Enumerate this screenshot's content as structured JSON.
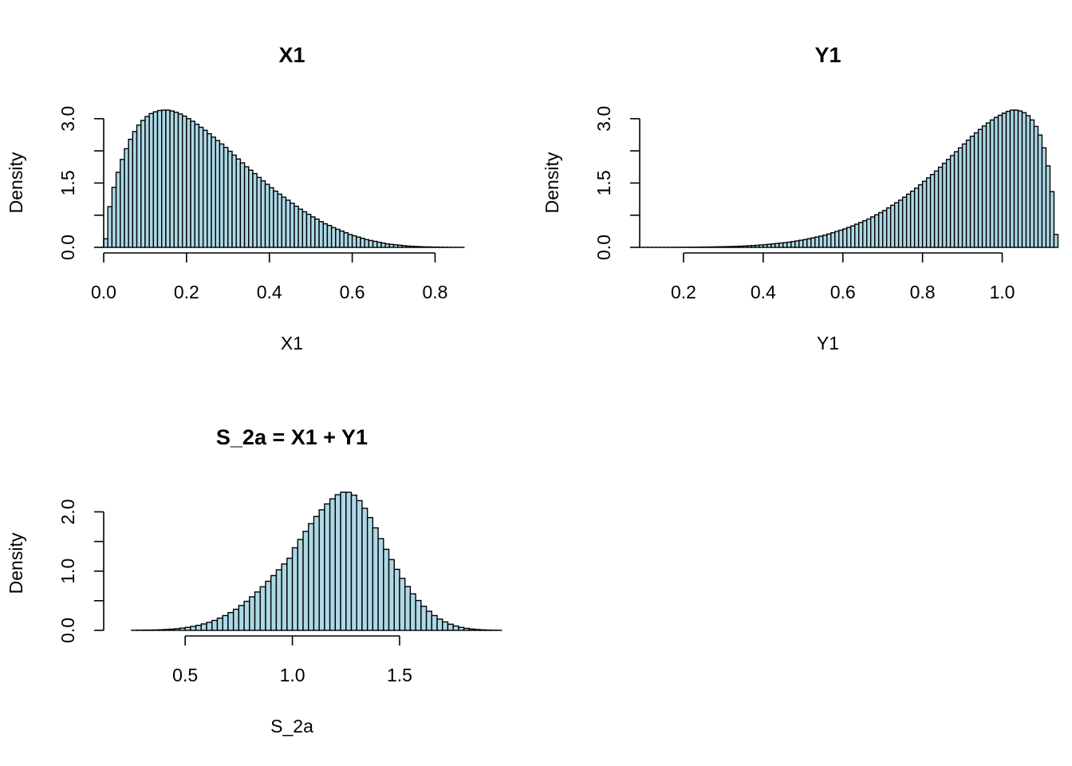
{
  "chart_data": [
    {
      "type": "bar",
      "title": "X1",
      "xlabel": "X1",
      "ylabel": "Density",
      "xlim": [
        0.0,
        0.88
      ],
      "ylim": [
        0.0,
        3.2
      ],
      "xticks": [
        "0.0",
        "0.2",
        "0.4",
        "0.6",
        "0.8"
      ],
      "yticks": [
        "0.0",
        "1.5",
        "3.0"
      ],
      "bin_start": 0.0,
      "bin_width": 0.01,
      "values": [
        0.2,
        0.95,
        1.4,
        1.75,
        2.05,
        2.3,
        2.52,
        2.7,
        2.85,
        2.96,
        3.05,
        3.12,
        3.16,
        3.19,
        3.2,
        3.2,
        3.18,
        3.15,
        3.11,
        3.06,
        3.0,
        2.94,
        2.87,
        2.8,
        2.73,
        2.65,
        2.57,
        2.49,
        2.41,
        2.33,
        2.24,
        2.15,
        2.06,
        1.97,
        1.88,
        1.8,
        1.72,
        1.63,
        1.55,
        1.47,
        1.39,
        1.31,
        1.24,
        1.17,
        1.1,
        1.03,
        0.96,
        0.89,
        0.83,
        0.77,
        0.71,
        0.66,
        0.6,
        0.55,
        0.51,
        0.46,
        0.42,
        0.38,
        0.34,
        0.3,
        0.27,
        0.24,
        0.21,
        0.18,
        0.16,
        0.14,
        0.12,
        0.1,
        0.08,
        0.07,
        0.06,
        0.05,
        0.04,
        0.03,
        0.025,
        0.02,
        0.015,
        0.012,
        0.01,
        0.008,
        0.006,
        0.004,
        0.003,
        0.002,
        0.001,
        0.001,
        0.001
      ]
    },
    {
      "type": "bar",
      "title": "Y1",
      "xlabel": "Y1",
      "ylabel": "Density",
      "xlim": [
        0.09,
        1.005
      ],
      "ylim": [
        0.0,
        3.2
      ],
      "xticks": [
        "0.2",
        "0.4",
        "0.6",
        "0.8",
        "1.0"
      ],
      "yticks": [
        "0.0",
        "1.5",
        "3.0"
      ],
      "bin_start": 0.09,
      "bin_width": 0.01,
      "values": [
        0.001,
        0.001,
        0.001,
        0.001,
        0.001,
        0.001,
        0.001,
        0.001,
        0.002,
        0.002,
        0.003,
        0.003,
        0.004,
        0.004,
        0.005,
        0.006,
        0.007,
        0.008,
        0.01,
        0.012,
        0.014,
        0.016,
        0.018,
        0.021,
        0.024,
        0.028,
        0.032,
        0.037,
        0.042,
        0.048,
        0.055,
        0.062,
        0.07,
        0.08,
        0.09,
        0.1,
        0.11,
        0.12,
        0.135,
        0.15,
        0.165,
        0.18,
        0.2,
        0.22,
        0.24,
        0.26,
        0.285,
        0.31,
        0.34,
        0.37,
        0.4,
        0.43,
        0.465,
        0.5,
        0.54,
        0.58,
        0.62,
        0.66,
        0.71,
        0.76,
        0.81,
        0.86,
        0.92,
        0.98,
        1.04,
        1.1,
        1.17,
        1.24,
        1.31,
        1.38,
        1.46,
        1.54,
        1.62,
        1.7,
        1.78,
        1.87,
        1.96,
        2.05,
        2.14,
        2.23,
        2.32,
        2.41,
        2.5,
        2.59,
        2.67,
        2.75,
        2.83,
        2.9,
        2.97,
        3.03,
        3.08,
        3.13,
        3.17,
        3.2,
        3.2,
        3.18,
        3.14,
        3.07,
        2.97,
        2.82,
        2.62,
        2.32,
        1.9,
        1.3,
        0.3
      ]
    },
    {
      "type": "bar",
      "title": "S_2a = X1 + Y1",
      "xlabel": "S_2a",
      "ylabel": "Density",
      "xlim": [
        0.12,
        1.82
      ],
      "ylim": [
        0.0,
        2.33
      ],
      "xticks": [
        "0.5",
        "1.0",
        "1.5"
      ],
      "yticks": [
        "0.0",
        "1.0",
        "2.0"
      ],
      "bin_start": 0.25,
      "bin_width": 0.025,
      "values": [
        0.002,
        0.003,
        0.004,
        0.005,
        0.007,
        0.01,
        0.015,
        0.02,
        0.028,
        0.038,
        0.05,
        0.066,
        0.085,
        0.108,
        0.135,
        0.168,
        0.206,
        0.25,
        0.3,
        0.356,
        0.42,
        0.49,
        0.566,
        0.648,
        0.736,
        0.828,
        0.924,
        1.022,
        1.12,
        1.218,
        1.394,
        1.534,
        1.67,
        1.8,
        1.922,
        2.034,
        2.134,
        2.22,
        2.29,
        2.332,
        2.33,
        2.282,
        2.19,
        2.06,
        1.904,
        1.73,
        1.548,
        1.368,
        1.194,
        1.03,
        0.878,
        0.74,
        0.616,
        0.504,
        0.406,
        0.322,
        0.25,
        0.19,
        0.142,
        0.104,
        0.074,
        0.05,
        0.034,
        0.022,
        0.014,
        0.009,
        0.005,
        0.003,
        0.002
      ]
    }
  ]
}
